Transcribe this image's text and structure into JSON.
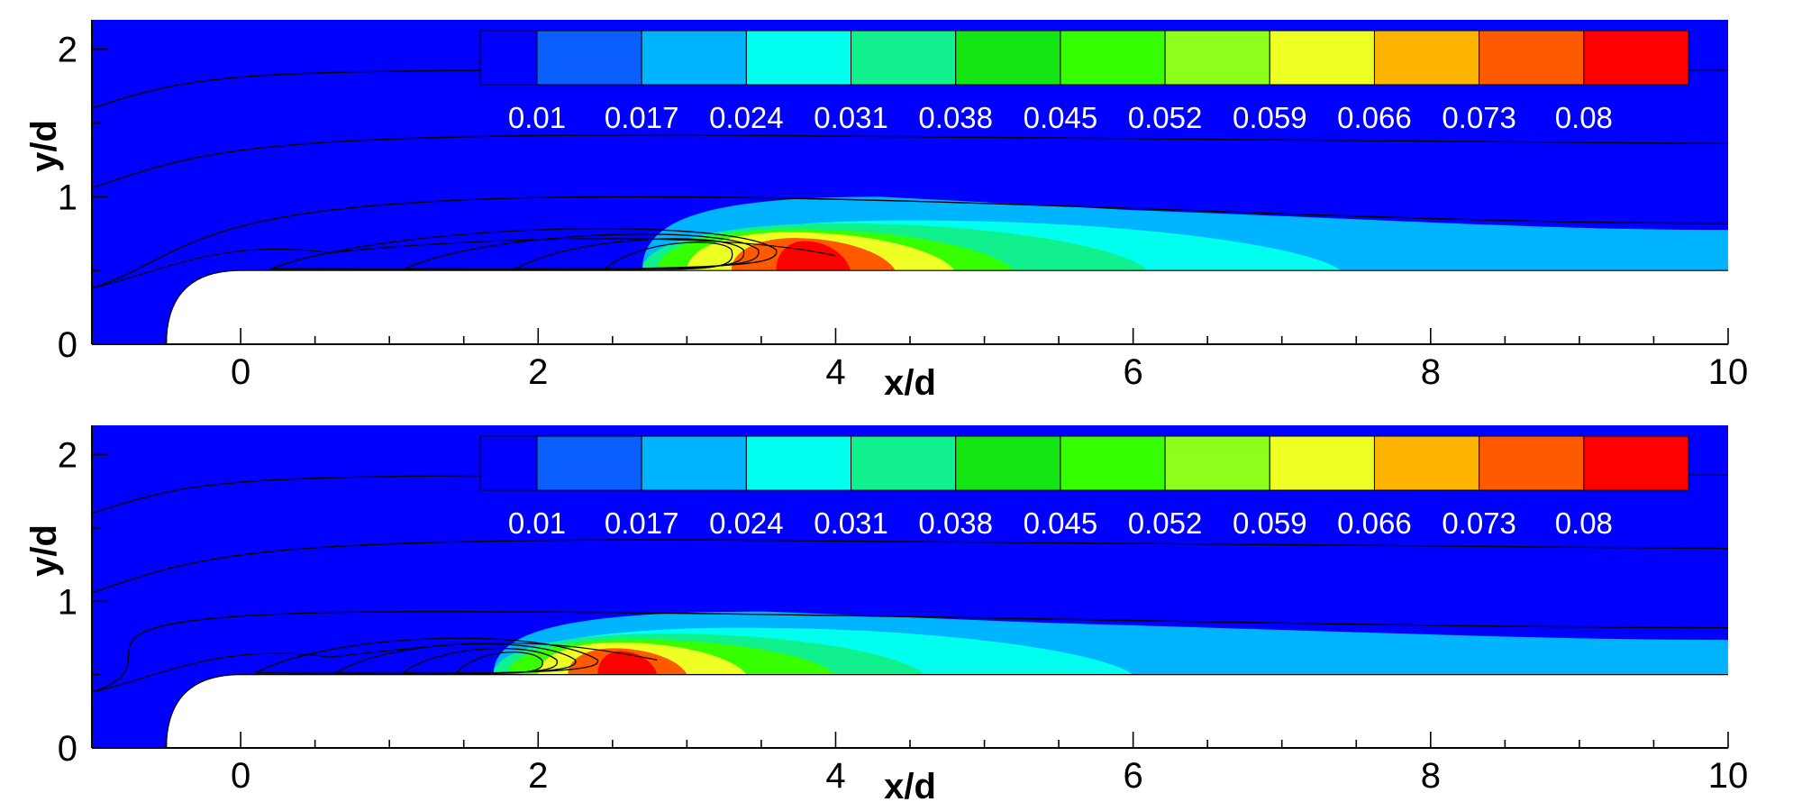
{
  "colors": {
    "background_field": "#0000ff",
    "body": "#ffffff",
    "streamline": "#000000",
    "legend_text": "#ffffff"
  },
  "legend": {
    "levels": [
      "0.01",
      "0.017",
      "0.024",
      "0.031",
      "0.038",
      "0.045",
      "0.052",
      "0.059",
      "0.066",
      "0.073",
      "0.08"
    ],
    "colors": [
      "#0000ff",
      "#0b5fff",
      "#00b4ff",
      "#00ffee",
      "#10f08c",
      "#14e614",
      "#36ff00",
      "#8cff1a",
      "#eeff23",
      "#ffb400",
      "#ff5a00",
      "#ff0000"
    ]
  },
  "chart_data": [
    {
      "type": "heatmap",
      "title": "",
      "xlabel": "x/d",
      "ylabel": "y/d",
      "xlim": [
        -1,
        10
      ],
      "ylim": [
        0,
        2.2
      ],
      "xticks": [
        "0",
        "2",
        "4",
        "6",
        "8",
        "10"
      ],
      "yticks": [
        "0",
        "1",
        "2"
      ],
      "grid": false,
      "colormap_levels": [
        0.01,
        0.017,
        0.024,
        0.031,
        0.038,
        0.045,
        0.052,
        0.059,
        0.066,
        0.073,
        0.08
      ],
      "body_surface_y": 0.5,
      "body_leading_edge_x": -0.5,
      "peak": {
        "x": 3.9,
        "y": 0.66,
        "value": 0.08
      },
      "separation_bubble": {
        "x_start": 0.2,
        "x_end": 3.6,
        "center_x": 3.2,
        "center_y": 0.64
      },
      "regions": [
        {
          "level": 0.017,
          "x_start": 2.7,
          "x_end": 10,
          "y_top": 1.0
        },
        {
          "level": 0.024,
          "x_start": 2.7,
          "x_end": 7.4,
          "y_top": 0.84
        },
        {
          "level": 0.031,
          "x_start": 2.7,
          "x_end": 6.1,
          "y_top": 0.82
        },
        {
          "level": 0.045,
          "x_start": 2.8,
          "x_end": 5.2,
          "y_top": 0.78
        },
        {
          "level": 0.059,
          "x_start": 3.0,
          "x_end": 4.8,
          "y_top": 0.76
        },
        {
          "level": 0.073,
          "x_start": 3.3,
          "x_end": 4.4,
          "y_top": 0.72
        },
        {
          "level": 0.08,
          "x_start": 3.6,
          "x_end": 4.1,
          "y_top": 0.7
        }
      ]
    },
    {
      "type": "heatmap",
      "title": "",
      "xlabel": "x/d",
      "ylabel": "y/d",
      "xlim": [
        -1,
        10
      ],
      "ylim": [
        0,
        2.2
      ],
      "xticks": [
        "0",
        "2",
        "4",
        "6",
        "8",
        "10"
      ],
      "yticks": [
        "0",
        "1",
        "2"
      ],
      "grid": false,
      "colormap_levels": [
        0.01,
        0.017,
        0.024,
        0.031,
        0.038,
        0.045,
        0.052,
        0.059,
        0.066,
        0.073,
        0.08
      ],
      "body_surface_y": 0.5,
      "body_leading_edge_x": -0.5,
      "peak": {
        "x": 2.6,
        "y": 0.62,
        "value": 0.08
      },
      "separation_bubble": {
        "x_start": 0.1,
        "x_end": 2.4,
        "center_x": 1.9,
        "center_y": 0.6
      },
      "regions": [
        {
          "level": 0.017,
          "x_start": 1.7,
          "x_end": 10,
          "y_top": 0.93
        },
        {
          "level": 0.024,
          "x_start": 1.7,
          "x_end": 6.0,
          "y_top": 0.82
        },
        {
          "level": 0.031,
          "x_start": 1.7,
          "x_end": 4.6,
          "y_top": 0.78
        },
        {
          "level": 0.045,
          "x_start": 1.8,
          "x_end": 4.0,
          "y_top": 0.74
        },
        {
          "level": 0.059,
          "x_start": 2.0,
          "x_end": 3.4,
          "y_top": 0.72
        },
        {
          "level": 0.073,
          "x_start": 2.2,
          "x_end": 3.0,
          "y_top": 0.68
        },
        {
          "level": 0.08,
          "x_start": 2.4,
          "x_end": 2.8,
          "y_top": 0.66
        }
      ]
    }
  ]
}
